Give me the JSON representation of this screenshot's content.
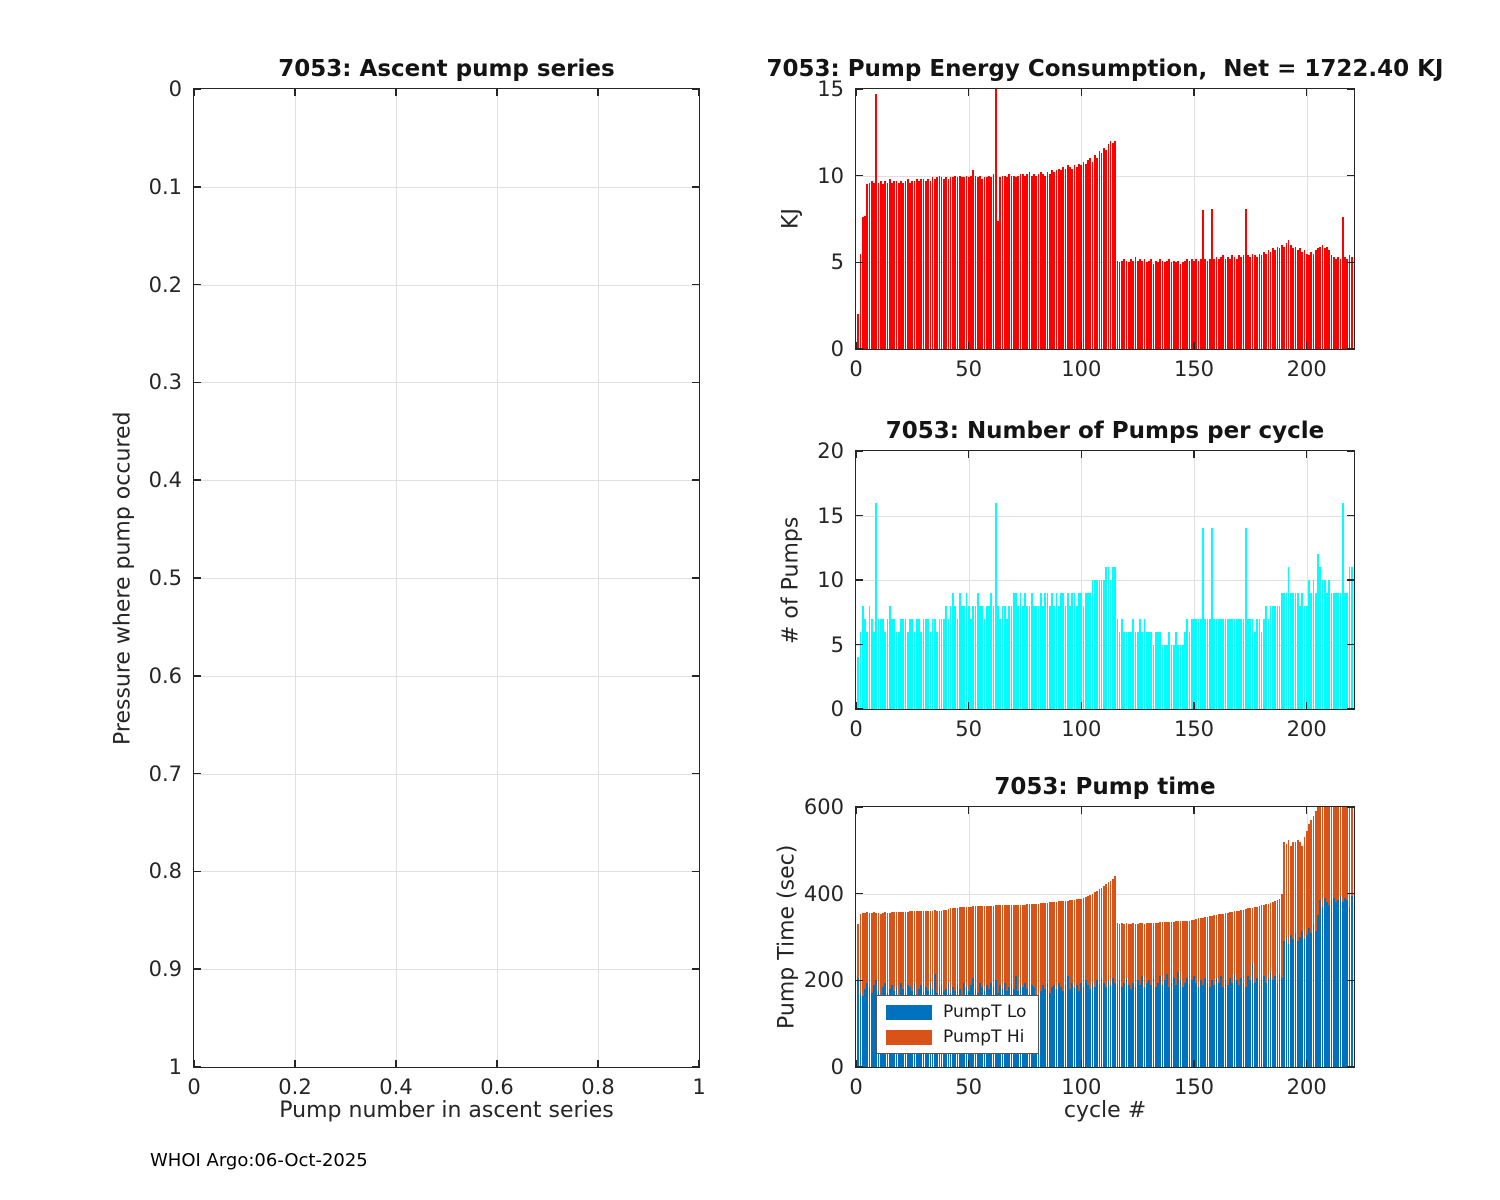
{
  "figure": {
    "footer": "WHOI Argo:06-Oct-2025"
  },
  "colors": {
    "energy_bar": "#ff0000",
    "pumps_bar": "#00ffff",
    "pumpt_lo": "#0072bd",
    "pumpt_hi": "#d95319",
    "grid": "#e0e0e0",
    "axis": "#262626"
  },
  "chart_data": [
    {
      "id": "ascent-pump-series",
      "type": "scatter",
      "title": "7053: Ascent pump series",
      "xlabel": "Pump number in ascent series",
      "ylabel": "Pressure where pump occured",
      "xlim": [
        0,
        1
      ],
      "ylim": [
        0,
        1
      ],
      "y_inverted": true,
      "grid": true,
      "xticks": [
        0,
        0.2,
        0.4,
        0.6,
        0.8,
        1
      ],
      "yticks": [
        0,
        0.1,
        0.2,
        0.3,
        0.4,
        0.5,
        0.6,
        0.7,
        0.8,
        0.9,
        1
      ],
      "points": []
    },
    {
      "id": "pump-energy",
      "type": "bar",
      "title": "7053: Pump Energy Consumption,  Net = 1722.40 KJ",
      "net_kj": 1722.4,
      "ylabel": "KJ",
      "bar_color": "#ff0000",
      "xlim": [
        0,
        221
      ],
      "ylim": [
        0,
        15
      ],
      "grid": true,
      "xticks": [
        0,
        50,
        100,
        150,
        200
      ],
      "yticks": [
        0,
        5,
        10,
        15
      ],
      "values": [
        2.0,
        5.5,
        7.6,
        7.7,
        9.5,
        9.6,
        9.7,
        9.6,
        14.7,
        9.6,
        9.7,
        9.5,
        9.7,
        9.6,
        9.8,
        9.6,
        9.7,
        9.7,
        9.6,
        9.7,
        9.6,
        9.7,
        9.8,
        9.6,
        9.7,
        9.7,
        9.8,
        9.7,
        9.8,
        9.8,
        9.7,
        9.8,
        9.7,
        9.9,
        9.8,
        9.9,
        10.0,
        9.9,
        9.8,
        9.9,
        9.8,
        9.9,
        9.9,
        10.0,
        9.9,
        10.0,
        9.9,
        9.9,
        10.0,
        9.9,
        10.0,
        10.3,
        10.0,
        9.9,
        10.0,
        9.8,
        9.9,
        9.9,
        10.0,
        9.9,
        10.1,
        15.0,
        7.4,
        9.9,
        10.0,
        10.0,
        9.9,
        10.1,
        10.0,
        10.0,
        9.9,
        10.0,
        10.1,
        10.1,
        10.0,
        10.1,
        10.2,
        10.0,
        10.1,
        10.0,
        10.1,
        10.2,
        10.1,
        10.0,
        10.2,
        10.1,
        10.3,
        10.2,
        10.3,
        10.4,
        10.3,
        10.5,
        10.4,
        10.6,
        10.5,
        10.4,
        10.6,
        10.5,
        10.7,
        10.6,
        10.8,
        10.7,
        10.9,
        11.0,
        10.8,
        11.2,
        11.0,
        11.4,
        11.3,
        11.6,
        11.5,
        11.8,
        12.0,
        11.9,
        12.0,
        5.1,
        5.0,
        5.1,
        5.2,
        5.1,
        5.0,
        5.2,
        5.1,
        5.3,
        5.1,
        5.2,
        5.1,
        5.2,
        5.0,
        5.1,
        5.2,
        4.9,
        5.1,
        5.0,
        5.2,
        5.1,
        5.0,
        5.1,
        5.2,
        5.0,
        5.1,
        5.0,
        5.1,
        4.9,
        5.0,
        5.1,
        5.2,
        5.1,
        5.2,
        5.1,
        5.2,
        5.1,
        5.2,
        8.0,
        5.2,
        5.1,
        5.2,
        8.1,
        5.2,
        5.3,
        5.2,
        5.3,
        5.4,
        5.2,
        5.3,
        5.2,
        5.4,
        5.3,
        5.2,
        5.4,
        5.3,
        5.4,
        8.1,
        5.4,
        5.3,
        5.5,
        5.4,
        5.3,
        5.5,
        5.4,
        5.6,
        5.5,
        5.7,
        5.6,
        5.8,
        5.7,
        5.9,
        5.8,
        6.0,
        5.9,
        6.1,
        6.3,
        6.0,
        5.8,
        5.9,
        5.7,
        5.8,
        5.6,
        5.7,
        5.5,
        5.4,
        5.6,
        5.5,
        5.7,
        5.8,
        5.9,
        6.0,
        5.8,
        5.9,
        5.7,
        5.4,
        5.3,
        5.2,
        5.3,
        5.2,
        7.6,
        5.3,
        5.2,
        5.4,
        5.3
      ]
    },
    {
      "id": "pumps-per-cycle",
      "type": "bar",
      "title": "7053: Number of Pumps per cycle",
      "ylabel": "# of Pumps",
      "bar_color": "#00ffff",
      "xlim": [
        0,
        221
      ],
      "ylim": [
        0,
        20
      ],
      "grid": true,
      "xticks": [
        0,
        50,
        100,
        150,
        200
      ],
      "yticks": [
        0,
        5,
        10,
        15,
        20
      ],
      "values": [
        4,
        6,
        8,
        7,
        6,
        8,
        7,
        6,
        16,
        7,
        7,
        7,
        6,
        7,
        8,
        7,
        7,
        6,
        6,
        7,
        7,
        7,
        6,
        7,
        7,
        6,
        7,
        7,
        6,
        7,
        7,
        7,
        6,
        7,
        7,
        6,
        7,
        7,
        7,
        8,
        7,
        8,
        9,
        8,
        7,
        9,
        8,
        8,
        9,
        8,
        7,
        8,
        8,
        9,
        8,
        8,
        7,
        8,
        8,
        9,
        8,
        16,
        8,
        7,
        8,
        8,
        7,
        8,
        8,
        9,
        9,
        8,
        9,
        8,
        9,
        8,
        8,
        9,
        8,
        8,
        8,
        9,
        8,
        9,
        9,
        8,
        9,
        8,
        9,
        8,
        9,
        9,
        8,
        9,
        8,
        9,
        9,
        8,
        9,
        9,
        8,
        9,
        9,
        9,
        10,
        10,
        10,
        10,
        10,
        10,
        11,
        11,
        10,
        11,
        11,
        7,
        6,
        7,
        6,
        6,
        6,
        6,
        7,
        6,
        6,
        7,
        6,
        7,
        6,
        6,
        6,
        5,
        6,
        6,
        6,
        5,
        5,
        5,
        6,
        5,
        5,
        6,
        5,
        5,
        5,
        6,
        7,
        6,
        7,
        7,
        7,
        7,
        7,
        14,
        7,
        7,
        7,
        14,
        7,
        7,
        7,
        7,
        7,
        7,
        7,
        7,
        7,
        7,
        7,
        7,
        7,
        7,
        14,
        7,
        7,
        7,
        6,
        7,
        7,
        6,
        7,
        8,
        7,
        8,
        8,
        8,
        8,
        8,
        9,
        9,
        9,
        11,
        9,
        9,
        9,
        9,
        8,
        9,
        8,
        8,
        10,
        9,
        10,
        9,
        12,
        11,
        10,
        10,
        9,
        10,
        9,
        9,
        9,
        9,
        9,
        16,
        9,
        9,
        11,
        11
      ]
    },
    {
      "id": "pump-time",
      "type": "stacked-bar",
      "title": "7053: Pump time",
      "xlabel": "cycle #",
      "ylabel": "Pump Time (sec)",
      "xlim": [
        0,
        221
      ],
      "ylim": [
        0,
        600
      ],
      "grid": true,
      "xticks": [
        0,
        50,
        100,
        150,
        200
      ],
      "yticks": [
        0,
        200,
        400,
        600
      ],
      "legend": [
        "PumpT Lo",
        "PumpT Hi"
      ],
      "series": [
        {
          "name": "PumpT Lo",
          "color": "#0072bd",
          "values": [
            205,
            170,
            165,
            180,
            195,
            185,
            170,
            190,
            200,
            175,
            165,
            185,
            195,
            170,
            180,
            190,
            175,
            185,
            165,
            195,
            180,
            170,
            190,
            185,
            175,
            195,
            165,
            180,
            190,
            170,
            185,
            175,
            195,
            180,
            215,
            170,
            185,
            190,
            175,
            180,
            195,
            170,
            185,
            175,
            190,
            180,
            165,
            195,
            185,
            175,
            190,
            205,
            180,
            170,
            195,
            185,
            175,
            190,
            180,
            195,
            185,
            200,
            170,
            190,
            180,
            195,
            175,
            185,
            190,
            180,
            210,
            175,
            190,
            185,
            195,
            180,
            170,
            190,
            185,
            160,
            145,
            175,
            190,
            180,
            195,
            170,
            185,
            190,
            180,
            195,
            185,
            175,
            190,
            210,
            180,
            195,
            185,
            190,
            175,
            195,
            185,
            200,
            190,
            180,
            195,
            185,
            200,
            190,
            205,
            195,
            185,
            200,
            190,
            205,
            195,
            190,
            200,
            185,
            195,
            205,
            190,
            180,
            195,
            185,
            200,
            190,
            210,
            185,
            195,
            200,
            190,
            205,
            185,
            195,
            210,
            190,
            200,
            215,
            185,
            195,
            205,
            190,
            220,
            200,
            185,
            195,
            205,
            190,
            200,
            210,
            195,
            185,
            200,
            190,
            205,
            195,
            185,
            200,
            190,
            205,
            195,
            210,
            185,
            200,
            190,
            205,
            195,
            215,
            200,
            190,
            205,
            195,
            185,
            210,
            200,
            240,
            195,
            205,
            190,
            200,
            210,
            195,
            205,
            220,
            200,
            210,
            195,
            215,
            205,
            290,
            300,
            285,
            305,
            295,
            310,
            290,
            300,
            315,
            295,
            305,
            320,
            310,
            330,
            315,
            350,
            385,
            370,
            390,
            380,
            375,
            385,
            390,
            380,
            385,
            395,
            380,
            390,
            385,
            370,
            395
          ]
        },
        {
          "name": "PumpT Hi",
          "color": "#d95319",
          "values": [
            125,
            182,
            190,
            175,
            162,
            170,
            186,
            168,
            155,
            180,
            187,
            170,
            162,
            186,
            176,
            167,
            182,
            172,
            193,
            163,
            178,
            188,
            168,
            174,
            184,
            164,
            194,
            179,
            169,
            189,
            175,
            186,
            166,
            181,
            147,
            191,
            176,
            171,
            187,
            182,
            170,
            196,
            181,
            192,
            177,
            189,
            204,
            174,
            185,
            195,
            180,
            166,
            191,
            201,
            177,
            187,
            197,
            182,
            192,
            177,
            187,
            173,
            203,
            183,
            193,
            179,
            199,
            189,
            184,
            194,
            164,
            200,
            185,
            190,
            180,
            196,
            206,
            186,
            191,
            216,
            232,
            203,
            188,
            199,
            184,
            210,
            195,
            191,
            201,
            187,
            197,
            208,
            194,
            174,
            205,
            191,
            201,
            197,
            212,
            193,
            205,
            192,
            204,
            216,
            205,
            218,
            206,
            220,
            209,
            223,
            237,
            226,
            240,
            230,
            245,
            142,
            130,
            147,
            136,
            127,
            141,
            150,
            137,
            146,
            131,
            142,
            122,
            146,
            137,
            132,
            143,
            128,
            148,
            138,
            124,
            144,
            134,
            120,
            150,
            140,
            130,
            146,
            116,
            136,
            152,
            142,
            133,
            148,
            139,
            130,
            147,
            158,
            144,
            155,
            141,
            152,
            163,
            149,
            160,
            146,
            157,
            143,
            169,
            155,
            166,
            152,
            163,
            144,
            160,
            171,
            157,
            168,
            179,
            156,
            167,
            128,
            174,
            165,
            181,
            173,
            164,
            181,
            172,
            159,
            181,
            173,
            190,
            172,
            195,
            230,
            215,
            240,
            205,
            225,
            210,
            235,
            220,
            195,
            235,
            240,
            240,
            260,
            250,
            275,
            270,
            245,
            260,
            240,
            250,
            255,
            245,
            250,
            255,
            250,
            240,
            255,
            245,
            250,
            265,
            230
          ]
        }
      ]
    }
  ]
}
